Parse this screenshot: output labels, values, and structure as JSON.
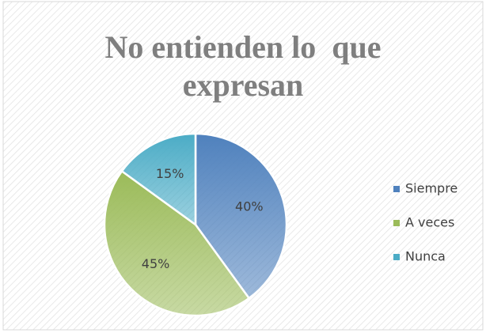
{
  "chart_data": {
    "type": "pie",
    "title": "No entienden lo  que expresan",
    "categories": [
      "Siempre",
      "A veces",
      "Nunca"
    ],
    "values": [
      40,
      45,
      15
    ],
    "value_labels": [
      "40%",
      "45%",
      "15%"
    ],
    "colors": [
      "#4f81bd",
      "#9bbb59",
      "#4bacc6"
    ],
    "legend": "right"
  }
}
